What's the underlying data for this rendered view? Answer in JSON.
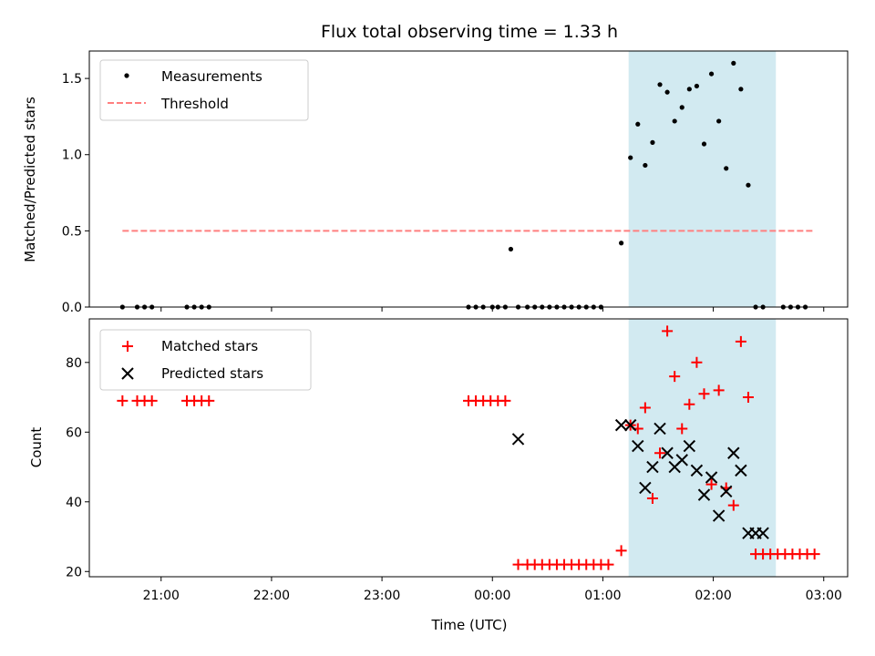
{
  "chart_data": [
    {
      "type": "scatter",
      "title": "Flux total observing time = 1.33 h",
      "xlabel": "",
      "ylabel": "Matched/Predicted stars",
      "x_domain": [
        "20:21",
        "03:13"
      ],
      "ylim": [
        0,
        1.68
      ],
      "yticks": [
        "0.0",
        "0.5",
        "1.0",
        "1.5"
      ],
      "ytick_values": [
        0,
        0.5,
        1.0,
        1.5
      ],
      "xticks": [
        "21:00",
        "22:00",
        "23:00",
        "00:00",
        "01:00",
        "02:00",
        "03:00"
      ],
      "xtick_labels_shown": false,
      "shaded_span": [
        "01:14",
        "02:34"
      ],
      "shaded_color": "#add8e6",
      "legend_position": "upper left",
      "series": [
        {
          "name": "Measurements",
          "marker": "dot",
          "color": "#000000",
          "x": [
            "20:39",
            "20:47",
            "20:51",
            "20:55",
            "21:14",
            "21:18",
            "21:22",
            "21:26",
            "23:47",
            "23:51",
            "23:55",
            "00:00",
            "00:03",
            "00:07",
            "00:10",
            "00:14",
            "00:19",
            "00:23",
            "00:27",
            "00:31",
            "00:35",
            "00:39",
            "00:43",
            "00:47",
            "00:51",
            "00:55",
            "00:59",
            "01:10",
            "01:15",
            "01:19",
            "01:23",
            "01:27",
            "01:31",
            "01:35",
            "01:39",
            "01:43",
            "01:47",
            "01:51",
            "01:55",
            "01:59",
            "02:03",
            "02:07",
            "02:11",
            "02:15",
            "02:19",
            "02:23",
            "02:27",
            "02:38",
            "02:42",
            "02:46",
            "02:50"
          ],
          "y": [
            0,
            0,
            0,
            0,
            0,
            0,
            0,
            0,
            0,
            0,
            0,
            0,
            0,
            0,
            0.38,
            0,
            0,
            0,
            0,
            0,
            0,
            0,
            0,
            0,
            0,
            0,
            0,
            0.42,
            0.98,
            1.2,
            0.93,
            1.08,
            1.46,
            1.41,
            1.22,
            1.31,
            1.43,
            1.45,
            1.07,
            1.53,
            1.22,
            0.91,
            1.6,
            1.43,
            0.8,
            0,
            0,
            0,
            0,
            0,
            0
          ]
        },
        {
          "name": "Threshold",
          "style": "dashed",
          "color": "#ff7f7f",
          "x": [
            "20:39",
            "02:54"
          ],
          "y": [
            0.5,
            0.5
          ]
        }
      ]
    },
    {
      "type": "scatter",
      "title": "",
      "xlabel": "Time (UTC)",
      "ylabel": "Count",
      "x_domain": [
        "20:21",
        "03:13"
      ],
      "ylim": [
        18.5,
        92.5
      ],
      "yticks": [
        "20",
        "40",
        "60",
        "80"
      ],
      "ytick_values": [
        20,
        40,
        60,
        80
      ],
      "xticks": [
        "21:00",
        "22:00",
        "23:00",
        "00:00",
        "01:00",
        "02:00",
        "03:00"
      ],
      "xtick_labels_shown": true,
      "shaded_span": [
        "01:14",
        "02:34"
      ],
      "shaded_color": "#add8e6",
      "legend_position": "upper left",
      "series": [
        {
          "name": "Matched stars",
          "marker": "plus",
          "color": "#ff0000",
          "x": [
            "20:39",
            "20:47",
            "20:51",
            "20:55",
            "21:14",
            "21:18",
            "21:22",
            "21:26",
            "23:47",
            "23:51",
            "23:55",
            "23:59",
            "00:03",
            "00:07",
            "00:14",
            "00:19",
            "00:23",
            "00:27",
            "00:31",
            "00:35",
            "00:39",
            "00:43",
            "00:47",
            "00:51",
            "00:55",
            "00:59",
            "01:03",
            "01:10",
            "01:15",
            "01:19",
            "01:23",
            "01:27",
            "01:31",
            "01:35",
            "01:39",
            "01:43",
            "01:47",
            "01:51",
            "01:55",
            "01:59",
            "02:03",
            "02:07",
            "02:11",
            "02:15",
            "02:19",
            "02:23",
            "02:27",
            "02:31",
            "02:35",
            "02:39",
            "02:43",
            "02:47",
            "02:51",
            "02:55"
          ],
          "y": [
            69,
            69,
            69,
            69,
            69,
            69,
            69,
            69,
            69,
            69,
            69,
            69,
            69,
            69,
            22,
            22,
            22,
            22,
            22,
            22,
            22,
            22,
            22,
            22,
            22,
            22,
            22,
            26,
            62,
            61,
            67,
            41,
            54,
            89,
            76,
            61,
            68,
            80,
            71,
            45,
            72,
            44,
            39,
            86,
            70,
            25,
            25,
            25,
            25,
            25,
            25,
            25,
            25,
            25
          ]
        },
        {
          "name": "Predicted stars",
          "marker": "x",
          "color": "#000000",
          "x": [
            "00:14",
            "01:10",
            "01:15",
            "01:19",
            "01:23",
            "01:27",
            "01:31",
            "01:35",
            "01:39",
            "01:43",
            "01:47",
            "01:51",
            "01:55",
            "01:59",
            "02:03",
            "02:07",
            "02:11",
            "02:15",
            "02:19",
            "02:23",
            "02:27"
          ],
          "y": [
            58,
            62,
            62,
            56,
            44,
            50,
            61,
            54,
            50,
            52,
            56,
            49,
            42,
            47,
            36,
            43,
            54,
            49,
            31,
            31,
            31
          ]
        }
      ]
    }
  ]
}
